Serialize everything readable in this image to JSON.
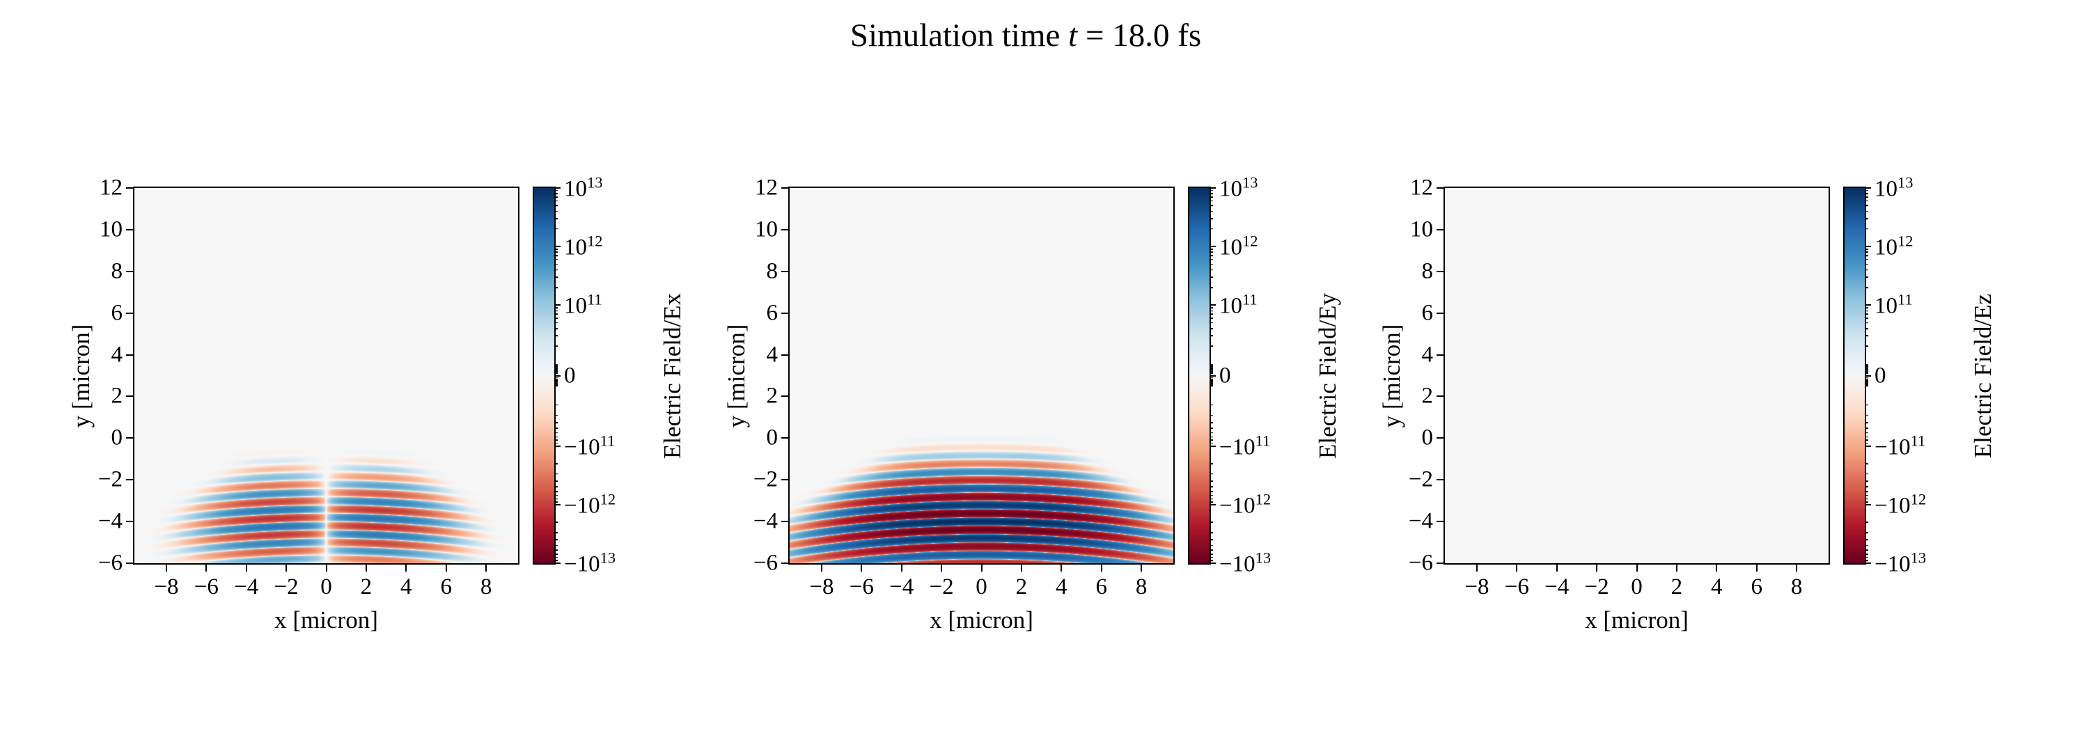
{
  "background": "#ffffff",
  "title": {
    "pre": "Simulation time ",
    "var": "t",
    "post": " = 18.0 fs"
  },
  "chart_data": {
    "type": "heatmap",
    "title": "Simulation time t = 18.0 fs",
    "time_fs": 18.0,
    "xlabel": "x [micron]",
    "ylabel": "y [micron]",
    "xlim": [
      -9.6,
      9.6
    ],
    "ylim": [
      -6,
      12
    ],
    "xticks": [
      -8,
      -6,
      -4,
      -2,
      0,
      2,
      4,
      6,
      8
    ],
    "yticks": [
      -6,
      -4,
      -2,
      0,
      2,
      4,
      6,
      8,
      10,
      12
    ],
    "subplots": [
      {
        "field": "Ex",
        "colorbar_label": "Electric Field/Ex"
      },
      {
        "field": "Ey",
        "colorbar_label": "Electric Field/Ey"
      },
      {
        "field": "Ez",
        "colorbar_label": "Electric Field/Ez"
      }
    ],
    "colorbar": {
      "scale": "symlog",
      "vmin": -10000000000000.0,
      "vmax": 10000000000000.0,
      "linthresh": 10000000000.0,
      "tick_labels": [
        "10^13",
        "10^12",
        "10^11",
        "0",
        "-10^11",
        "-10^12",
        "-10^13"
      ]
    },
    "colormap": {
      "name": "RdBu",
      "stops": [
        "#67001f",
        "#b2182b",
        "#d6604d",
        "#f4a582",
        "#fddbc7",
        "#f7f7f7",
        "#d1e5f0",
        "#92c5de",
        "#4393c3",
        "#2166ac",
        "#053061"
      ]
    },
    "pulse": {
      "wavelength_um": 0.8,
      "y_center": -4.0,
      "y_sigma": 1.45,
      "y_ref": -1.3,
      "halfwidth_top": 4.3,
      "spread": 0.75,
      "curvature": 0.008,
      "amp_Ey": 10000000000000.0,
      "amp_Ex": 1500000000000.0,
      "ex_node_width": 1.8,
      "ex_width": 4.0
    }
  }
}
